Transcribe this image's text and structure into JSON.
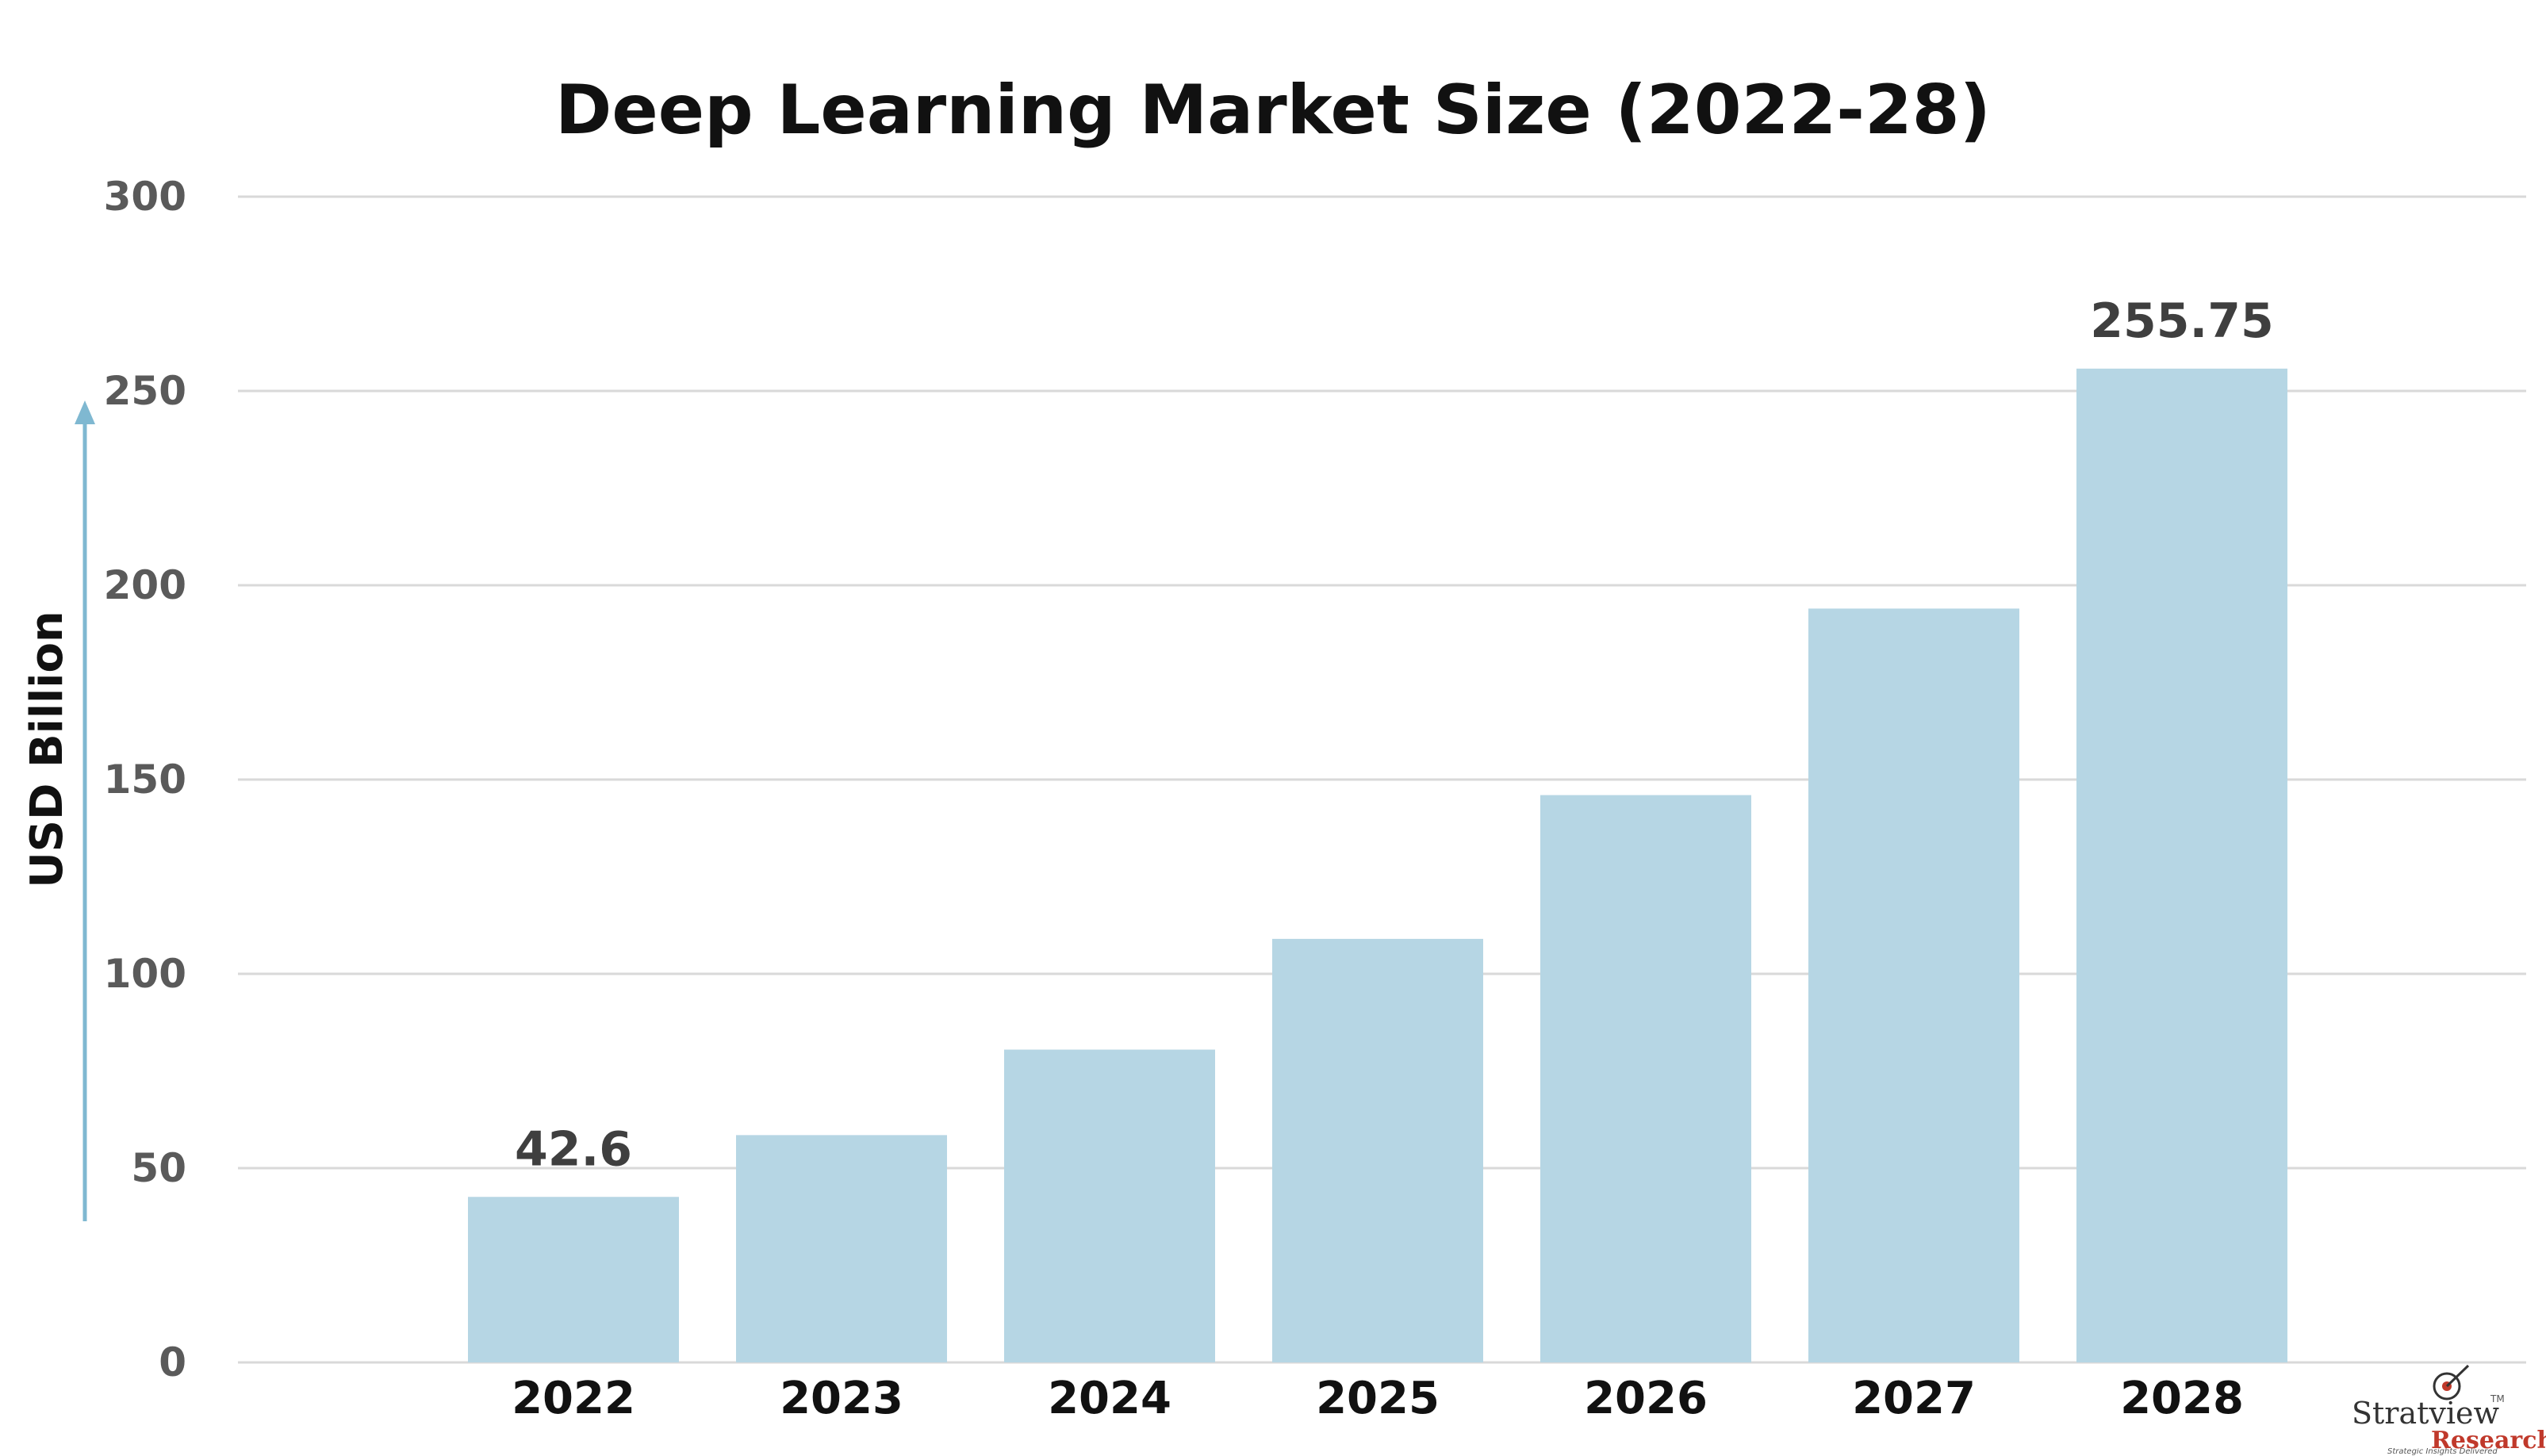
{
  "chart_data": {
    "type": "bar",
    "title": "Deep Learning Market Size (2022-28)",
    "ylabel": "USD Billion",
    "xlabel": "",
    "categories": [
      "2022",
      "2023",
      "2024",
      "2025",
      "2026",
      "2027",
      "2028"
    ],
    "values": [
      42.6,
      58.5,
      80.5,
      109,
      146,
      194,
      255.75
    ],
    "data_labels": [
      "42.6",
      "",
      "",
      "",
      "",
      "",
      "255.75"
    ],
    "ylim": [
      0,
      300
    ],
    "yticks": [
      "0",
      "50",
      "100",
      "150",
      "200",
      "250",
      "300"
    ],
    "grid": true,
    "bar_color": "#b6d6e4",
    "arrow_color": "#7fb8d1"
  },
  "logo": {
    "name": "Stratview",
    "tm": "TM",
    "sub": "Research",
    "tagline": "Strategic Insights Delivered"
  }
}
